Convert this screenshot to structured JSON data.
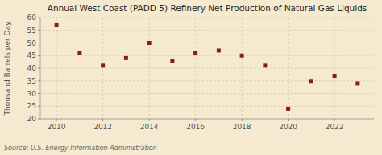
{
  "chart_data": {
    "type": "scatter",
    "title": "Annual West Coast (PADD 5) Refinery Net Production of Natural Gas Liquids",
    "y_label": "Thousand Barrels per Day",
    "source": "Source: U.S. Energy Information Administration",
    "x": [
      2010,
      2011,
      2012,
      2013,
      2014,
      2015,
      2016,
      2017,
      2018,
      2019,
      2020,
      2021,
      2022,
      2023
    ],
    "values": [
      57,
      46,
      41,
      44,
      50,
      43,
      46,
      47,
      45,
      41,
      24,
      35,
      37,
      34
    ],
    "color": "#8B1A1A",
    "marker": "square",
    "xlim": [
      2009.3,
      2023.7
    ],
    "xticks": [
      2010,
      2012,
      2014,
      2016,
      2018,
      2020,
      2022
    ],
    "ylim": [
      20,
      60
    ],
    "yticks": [
      20,
      25,
      30,
      35,
      40,
      45,
      50,
      55,
      60
    ],
    "grid": true
  }
}
